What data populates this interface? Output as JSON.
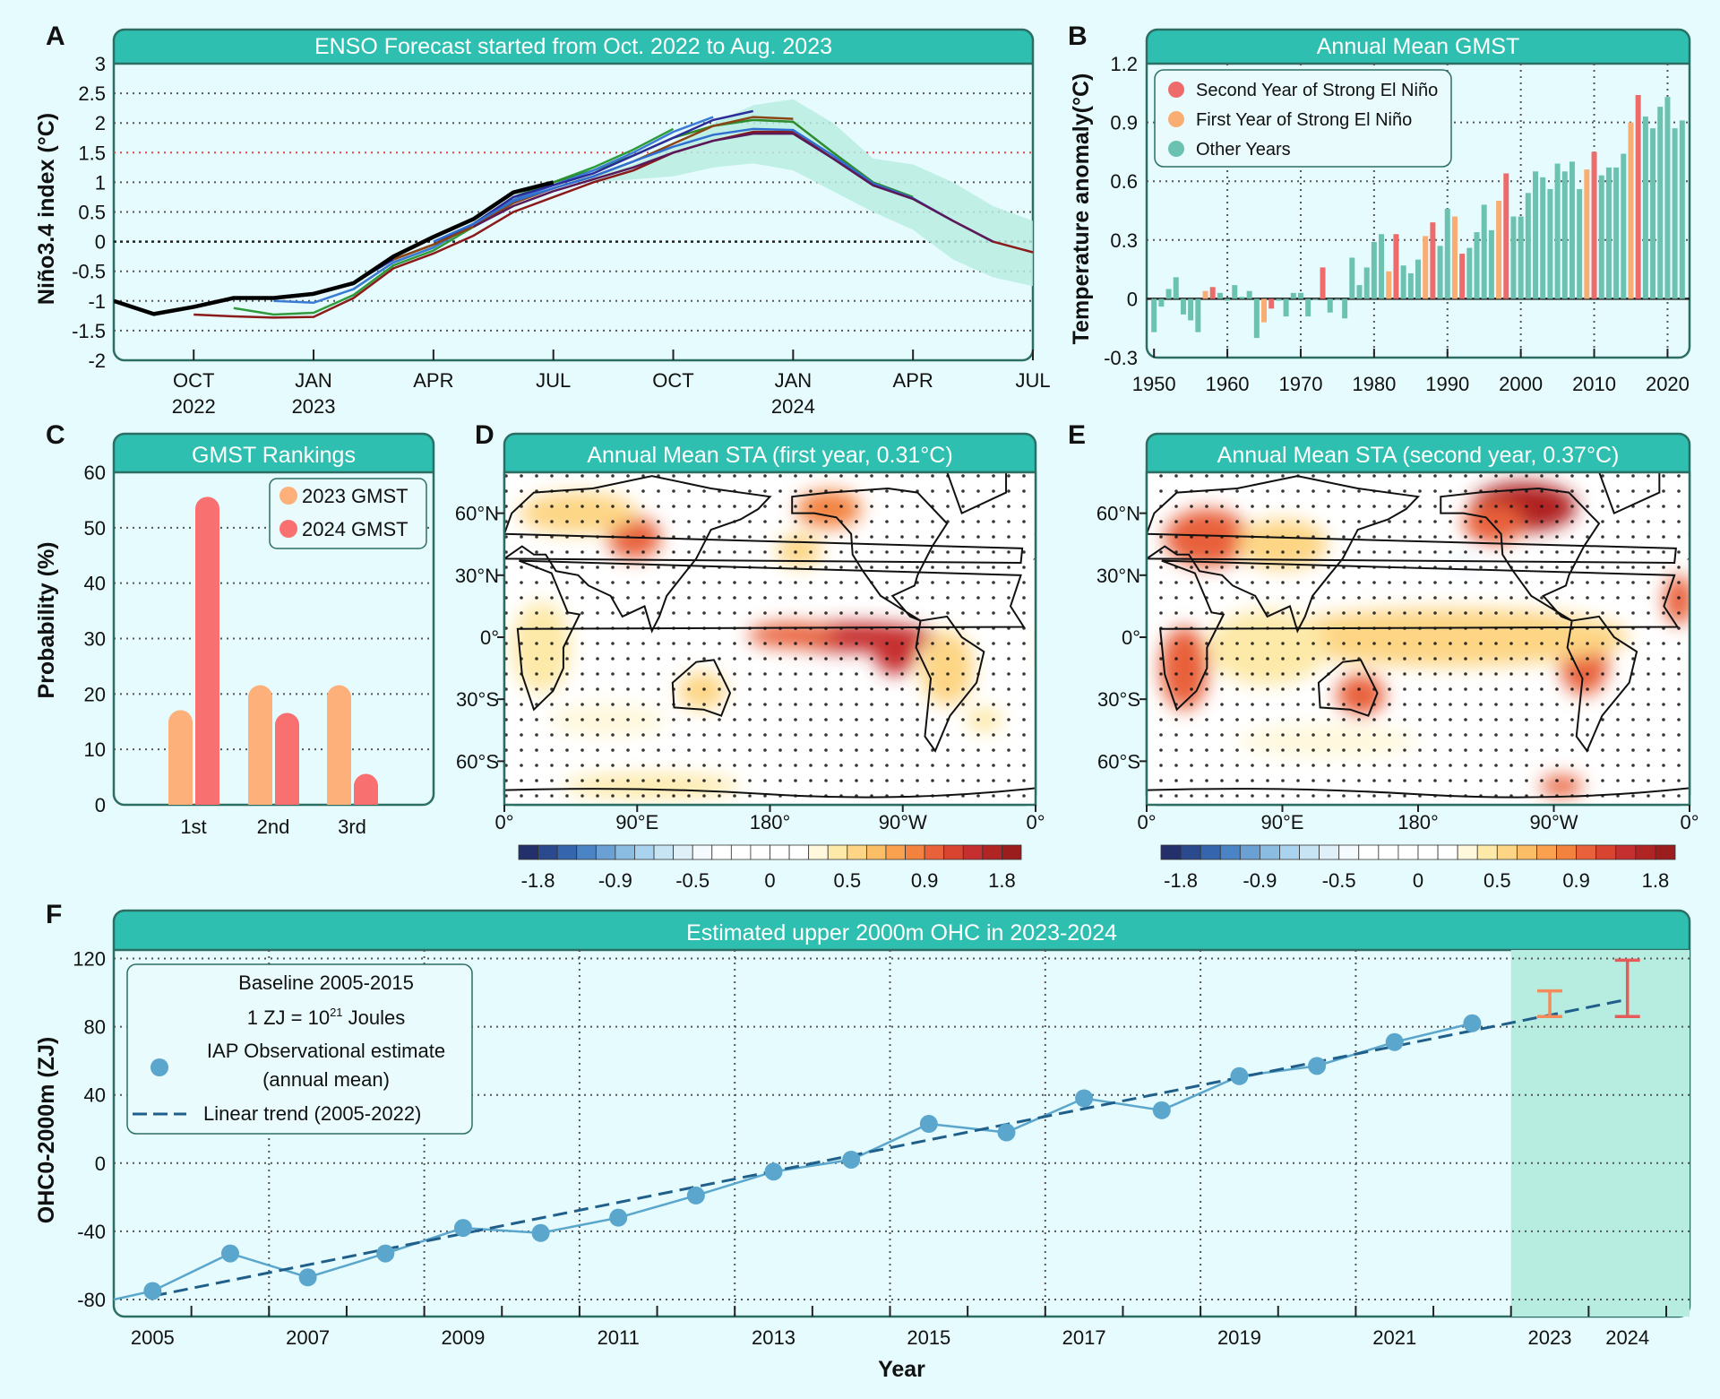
{
  "panel_letters": [
    "A",
    "B",
    "C",
    "D",
    "E",
    "F"
  ],
  "colors": {
    "header": "#2ebfb1",
    "frame": "#2c6e64",
    "background": "#e6fbfd",
    "second_year": "#ee6b6b",
    "first_year": "#f9ad72",
    "other_years": "#6cc2b0",
    "gmst2023": "#fdb07a",
    "gmst2024": "#f97070",
    "obs_point": "#5aa6cc",
    "trend": "#1f5f8a",
    "err2023": "#f58a5a",
    "err2024": "#e65a5a",
    "shade": "#b7ece0"
  },
  "colorbar": {
    "ticks": [
      "-1.8",
      "-0.9",
      "-0.5",
      "0",
      "0.5",
      "0.9",
      "1.8"
    ],
    "tick_values": [
      -1.8,
      -0.9,
      -0.5,
      0,
      0.5,
      0.9,
      1.8
    ],
    "colors": [
      "#23306b",
      "#2b4a8e",
      "#3566ad",
      "#4a84c4",
      "#6aa0d4",
      "#8bbde3",
      "#a9d3ee",
      "#c6e4f4",
      "#dff0f8",
      "#f4fafd",
      "#ffffff",
      "#ffffff",
      "#ffffff",
      "#ffffff",
      "#ffffff",
      "#fff8dc",
      "#fde9a8",
      "#fdd584",
      "#fbbd66",
      "#f9a14f",
      "#f3823f",
      "#e8613a",
      "#d94430",
      "#c62f2f",
      "#b02424",
      "#9c1d1d"
    ]
  },
  "chart_data": [
    {
      "type": "line",
      "title": "ENSO Forecast started from Oct. 2022 to Aug. 2023",
      "ylabel": "Niño3.4 index (°C)",
      "ylim": [
        -2,
        3
      ],
      "xlim": [
        "2022-08",
        "2024-07"
      ],
      "yticks": [
        "3",
        "2.5",
        "2",
        "1.5",
        "1",
        "0.5",
        "0",
        "-0.5",
        "-1",
        "-1.5",
        "-2"
      ],
      "ytick_values": [
        3,
        2.5,
        2,
        1.5,
        1,
        0.5,
        0,
        -0.5,
        -1,
        -1.5,
        -2
      ],
      "xticks": [
        {
          "date": "2022-10",
          "label": "OCT",
          "sub": "2022"
        },
        {
          "date": "2023-01",
          "label": "JAN",
          "sub": "2023"
        },
        {
          "date": "2023-04",
          "label": "APR",
          "sub": ""
        },
        {
          "date": "2023-07",
          "label": "JUL",
          "sub": ""
        },
        {
          "date": "2023-10",
          "label": "OCT",
          "sub": ""
        },
        {
          "date": "2024-01",
          "label": "JAN",
          "sub": "2024"
        },
        {
          "date": "2024-04",
          "label": "APR",
          "sub": ""
        },
        {
          "date": "2024-07",
          "label": "JUL",
          "sub": ""
        }
      ],
      "reference_line": 1.5,
      "grid": true,
      "observed": {
        "color": "#000000",
        "start": "2022-08",
        "values": [
          -1.0,
          -1.22,
          -1.1,
          -0.95,
          -0.95,
          -0.88,
          -0.7,
          -0.25,
          0.08,
          0.38,
          0.83,
          1.0
        ]
      },
      "forecasts": [
        {
          "color": "#8b1a1a",
          "start": "2022-10",
          "values": [
            -1.23,
            -1.26,
            -1.28,
            -1.27,
            -0.95,
            -0.45,
            -0.2,
            0.1,
            0.5,
            0.75,
            1.0,
            1.2,
            1.5,
            1.7,
            1.85,
            1.85,
            1.4,
            0.95,
            0.72,
            0.35,
            0.0,
            -0.18
          ]
        },
        {
          "color": "#2e9b3a",
          "start": "2022-11",
          "values": [
            -1.12,
            -1.23,
            -1.2,
            -0.9,
            -0.4,
            -0.15,
            0.25,
            0.7,
            1.0,
            1.25,
            1.55,
            1.9
          ]
        },
        {
          "color": "#2e8b2e",
          "start": "2023-02",
          "values": [
            -0.8,
            -0.35,
            -0.1,
            0.3,
            0.75,
            1.0,
            1.2,
            1.45,
            1.75,
            1.95,
            2.05,
            2.02,
            1.5,
            1.0,
            0.75
          ]
        },
        {
          "color": "#3a7bd5",
          "start": "2022-12",
          "values": [
            -1.0,
            -1.03,
            -0.8,
            -0.35,
            -0.1,
            0.3,
            0.7,
            0.95,
            1.2,
            1.5,
            1.85,
            2.1
          ]
        },
        {
          "color": "#2b2b9a",
          "start": "2023-01",
          "values": [
            -0.88,
            -0.7,
            -0.3,
            -0.05,
            0.3,
            0.75,
            0.95,
            1.15,
            1.45,
            1.75,
            2.05,
            2.2
          ]
        },
        {
          "color": "#8b4513",
          "start": "2023-03",
          "values": [
            -0.3,
            -0.05,
            0.25,
            0.65,
            0.9,
            1.1,
            1.35,
            1.65,
            1.95,
            2.1,
            2.07
          ]
        },
        {
          "color": "#2f6fd0",
          "start": "2023-04",
          "values": [
            0.0,
            0.3,
            0.68,
            0.9,
            1.1,
            1.35,
            1.6,
            1.8,
            1.9,
            1.88,
            1.45,
            0.98,
            0.73,
            0.35
          ]
        },
        {
          "color": "#5a1a5a",
          "start": "2023-05",
          "values": [
            0.25,
            0.6,
            0.85,
            1.05,
            1.25,
            1.5,
            1.7,
            1.82,
            1.82,
            1.4,
            0.95,
            0.72,
            0.35,
            0.0
          ]
        }
      ],
      "spread_band": {
        "start": "2023-07",
        "lower": [
          1.0,
          1.0,
          1.05,
          1.1,
          1.25,
          1.32,
          1.2,
          0.85,
          0.5,
          0.2,
          -0.3,
          -0.6,
          -0.75
        ],
        "upper": [
          1.0,
          1.1,
          1.3,
          1.6,
          2.0,
          2.3,
          2.4,
          2.0,
          1.4,
          1.3,
          1.0,
          0.6,
          0.35
        ]
      }
    },
    {
      "type": "bar",
      "title": "Annual Mean GMST",
      "ylabel": "Temperature anomaly(°C)",
      "ylim": [
        -0.3,
        1.2
      ],
      "xlim": [
        1949,
        2023
      ],
      "yticks": [
        "1.2",
        "0.9",
        "0.6",
        "0.3",
        "0",
        "-0.3"
      ],
      "ytick_values": [
        1.2,
        0.9,
        0.6,
        0.3,
        0,
        -0.3
      ],
      "xticks": [
        "1950",
        "1960",
        "1970",
        "1980",
        "1990",
        "2000",
        "2010",
        "2020"
      ],
      "grid": true,
      "legend": {
        "position": "top-left",
        "items": [
          {
            "label": "Second Year of Strong El Niño",
            "key": "second"
          },
          {
            "label": "First Year of Strong El Niño",
            "key": "first"
          },
          {
            "label": "Other Years",
            "key": "other"
          }
        ]
      },
      "start_year": 1950,
      "values": [
        -0.17,
        -0.04,
        0.05,
        0.11,
        -0.08,
        -0.11,
        -0.17,
        0.04,
        0.06,
        0.03,
        -0.01,
        0.07,
        0.01,
        0.04,
        -0.2,
        -0.12,
        -0.05,
        -0.01,
        -0.09,
        0.03,
        0.03,
        -0.09,
        0.0,
        0.16,
        -0.07,
        0.0,
        -0.1,
        0.21,
        0.07,
        0.16,
        0.29,
        0.33,
        0.14,
        0.33,
        0.17,
        0.13,
        0.2,
        0.32,
        0.39,
        0.27,
        0.46,
        0.42,
        0.23,
        0.26,
        0.34,
        0.48,
        0.35,
        0.5,
        0.64,
        0.42,
        0.42,
        0.54,
        0.65,
        0.62,
        0.56,
        0.69,
        0.65,
        0.7,
        0.56,
        0.66,
        0.75,
        0.63,
        0.67,
        0.67,
        0.74,
        0.9,
        1.04,
        0.93,
        0.87,
        0.98,
        1.03,
        0.87,
        0.91
      ],
      "first_year_of_strong_el_nino": [
        1957,
        1965,
        1982,
        1987,
        1991,
        1997,
        2009,
        2015
      ],
      "second_year_of_strong_el_nino": [
        1958,
        1966,
        1973,
        1983,
        1988,
        1992,
        1998,
        2010,
        2016
      ]
    },
    {
      "type": "bar",
      "title": "GMST Rankings",
      "ylabel": "Probability (%)",
      "ylim": [
        0,
        60
      ],
      "yticks": [
        "60",
        "50",
        "40",
        "30",
        "20",
        "10",
        "0"
      ],
      "ytick_values": [
        60,
        50,
        40,
        30,
        20,
        10,
        0
      ],
      "categories": [
        "1st",
        "2nd",
        "3rd"
      ],
      "grid": true,
      "legend": {
        "position": "top-right"
      },
      "series": [
        {
          "name": "2023 GMST",
          "values": [
            17,
            21.5,
            21.5
          ]
        },
        {
          "name": "2024 GMST",
          "values": [
            55.5,
            16.5,
            5.5
          ]
        }
      ]
    },
    {
      "type": "heatmap",
      "title": "Annual Mean STA (first year, 0.31°C)",
      "lat_ticks": [
        "60°N",
        "30°N",
        "0°",
        "30°S",
        "60°S"
      ],
      "lat_values": [
        60,
        30,
        0,
        -30,
        -60
      ],
      "lon_ticks": [
        "0°",
        "90°E",
        "180°",
        "90°W",
        "0°"
      ],
      "lon_values": [
        0,
        90,
        180,
        270,
        360
      ],
      "anomaly_features": [
        {
          "lon": 238,
          "lat": 0,
          "rx": 55,
          "ry": 7,
          "value": 1.5
        },
        {
          "lon": 265,
          "lat": -8,
          "rx": 14,
          "ry": 10,
          "value": 1.4
        },
        {
          "lon": 195,
          "lat": 1,
          "rx": 30,
          "ry": 6,
          "value": 1.0
        },
        {
          "lon": 88,
          "lat": 48,
          "rx": 18,
          "ry": 10,
          "value": 1.1
        },
        {
          "lon": 50,
          "lat": 60,
          "rx": 40,
          "ry": 10,
          "value": 0.5
        },
        {
          "lon": 220,
          "lat": 62,
          "rx": 22,
          "ry": 9,
          "value": 0.8
        },
        {
          "lon": 200,
          "lat": 42,
          "rx": 15,
          "ry": 8,
          "value": 0.5
        },
        {
          "lon": 134,
          "lat": -26,
          "rx": 16,
          "ry": 9,
          "value": 0.6
        },
        {
          "lon": 25,
          "lat": -5,
          "rx": 20,
          "ry": 22,
          "value": 0.45
        },
        {
          "lon": 300,
          "lat": -15,
          "rx": 18,
          "ry": 18,
          "value": 0.5
        },
        {
          "lon": 325,
          "lat": -40,
          "rx": 12,
          "ry": 6,
          "value": 0.45
        },
        {
          "lon": 100,
          "lat": -72,
          "rx": 60,
          "ry": 6,
          "value": 0.4
        },
        {
          "lon": 70,
          "lat": -40,
          "rx": 40,
          "ry": 8,
          "value": 0.3
        },
        {
          "lon": 280,
          "lat": 55,
          "rx": 10,
          "ry": 6,
          "value": -0.3
        }
      ],
      "colorbar_ticks": [
        "-1.8",
        "-0.9",
        "-0.5",
        "0",
        "0.5",
        "0.9",
        "1.8"
      ],
      "stippling": true
    },
    {
      "type": "heatmap",
      "title": "Annual Mean STA (second year, 0.37°C)",
      "lat_ticks": [
        "60°N",
        "30°N",
        "0°",
        "30°S",
        "60°S"
      ],
      "lat_values": [
        60,
        30,
        0,
        -30,
        -60
      ],
      "lon_ticks": [
        "0°",
        "90°E",
        "180°",
        "90°W",
        "0°"
      ],
      "lon_values": [
        0,
        90,
        180,
        270,
        360
      ],
      "anomaly_features": [
        {
          "lon": 250,
          "lat": 63,
          "rx": 35,
          "ry": 12,
          "value": 1.7
        },
        {
          "lon": 230,
          "lat": 55,
          "rx": 20,
          "ry": 10,
          "value": 0.9
        },
        {
          "lon": 40,
          "lat": 48,
          "rx": 28,
          "ry": 14,
          "value": 1.1
        },
        {
          "lon": 90,
          "lat": 45,
          "rx": 30,
          "ry": 12,
          "value": 0.6
        },
        {
          "lon": 353,
          "lat": 18,
          "rx": 10,
          "ry": 12,
          "value": 1.1
        },
        {
          "lon": 25,
          "lat": -15,
          "rx": 16,
          "ry": 20,
          "value": 0.9
        },
        {
          "lon": 142,
          "lat": -28,
          "rx": 16,
          "ry": 10,
          "value": 0.9
        },
        {
          "lon": 290,
          "lat": -12,
          "rx": 16,
          "ry": 16,
          "value": 0.9
        },
        {
          "lon": 275,
          "lat": -72,
          "rx": 14,
          "ry": 5,
          "value": 1.1
        },
        {
          "lon": 200,
          "lat": 0,
          "rx": 120,
          "ry": 14,
          "value": 0.5
        },
        {
          "lon": 80,
          "lat": -5,
          "rx": 40,
          "ry": 18,
          "value": 0.45
        },
        {
          "lon": 120,
          "lat": -50,
          "rx": 60,
          "ry": 8,
          "value": 0.35
        },
        {
          "lon": 210,
          "lat": 36,
          "rx": 12,
          "ry": 6,
          "value": -0.45
        }
      ],
      "colorbar_ticks": [
        "-1.8",
        "-0.9",
        "-0.5",
        "0",
        "0.5",
        "0.9",
        "1.8"
      ],
      "stippling": true
    },
    {
      "type": "line",
      "title": "Estimated upper 2000m OHC in 2023-2024",
      "xlabel": "Year",
      "ylabel": "OHC0-2000m (ZJ)",
      "ylim": [
        -90,
        125
      ],
      "xlim": [
        2004.5,
        2024.8
      ],
      "yticks": [
        "120",
        "80",
        "40",
        "0",
        "-40",
        "-80"
      ],
      "ytick_values": [
        120,
        80,
        40,
        0,
        -40,
        -80
      ],
      "xticks": [
        "2005",
        "2007",
        "2009",
        "2011",
        "2013",
        "2015",
        "2017",
        "2019",
        "2021",
        "2023",
        "2024"
      ],
      "grid": true,
      "legend": {
        "position": "top-left",
        "baseline": "Baseline 2005-2015",
        "unit_pre": "1 ZJ = 10",
        "unit_sup": "21",
        "unit_post": " Joules",
        "obs_label_1": "IAP Observational estimate",
        "obs_label_2": "(annual mean)",
        "trend_label": "Linear trend (2005-2022)"
      },
      "observed": {
        "years": [
          2005,
          2006,
          2007,
          2008,
          2009,
          2010,
          2011,
          2012,
          2013,
          2014,
          2015,
          2016,
          2017,
          2018,
          2019,
          2020,
          2021,
          2022
        ],
        "values": [
          -75,
          -53,
          -67,
          -53,
          -38,
          -41,
          -32,
          -19,
          -5,
          2,
          23,
          18,
          38,
          31,
          51,
          57,
          71,
          82
        ]
      },
      "trend": {
        "from": [
          2005,
          -78
        ],
        "to": [
          2024,
          96
        ]
      },
      "projection_shading_from": 2022.5,
      "projections": [
        {
          "year": 2023,
          "low": 86,
          "high": 101
        },
        {
          "year": 2024,
          "low": 86,
          "high": 119
        }
      ]
    }
  ]
}
